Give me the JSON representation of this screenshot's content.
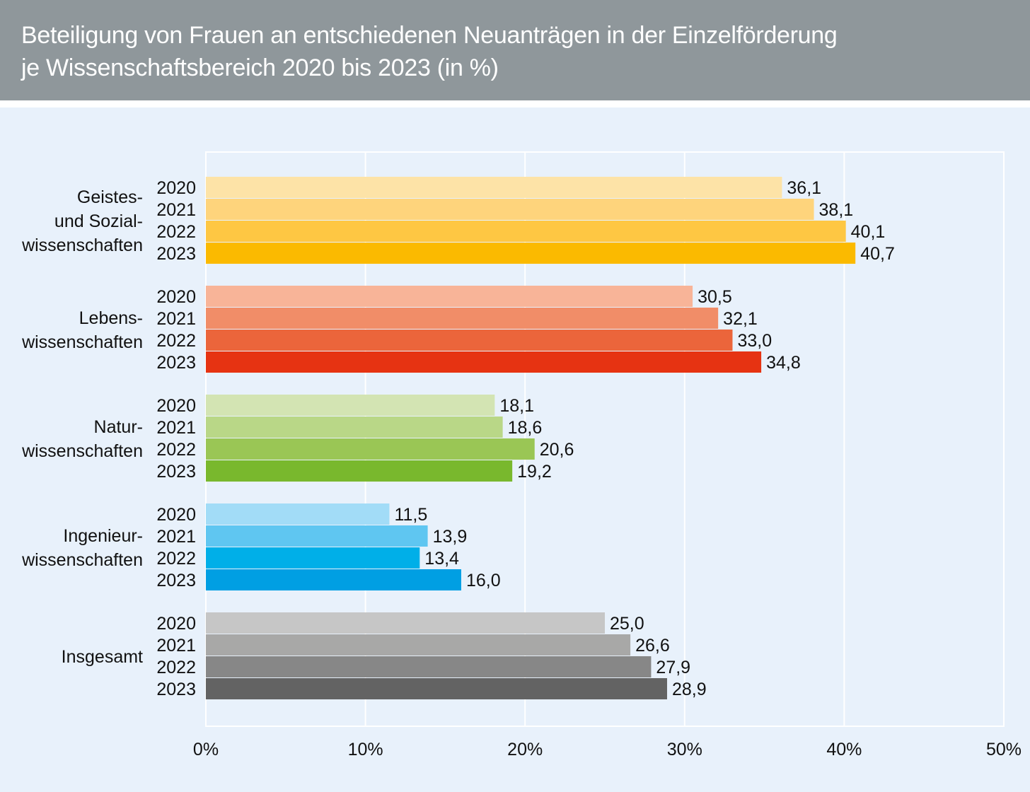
{
  "title": {
    "line1": "Beteiligung von Frauen an entschiedenen Neuanträgen in der Einzelförderung",
    "line2": "je Wissenschaftsbereich 2020 bis 2023 (in %)"
  },
  "chart_data": {
    "type": "bar",
    "orientation": "horizontal",
    "title": "Beteiligung von Frauen an entschiedenen Neuanträgen in der Einzelförderung je Wissenschaftsbereich 2020 bis 2023 (in %)",
    "xlim": [
      0,
      50
    ],
    "x_ticks": [
      "0%",
      "10%",
      "20%",
      "30%",
      "40%",
      "50%"
    ],
    "grid": true,
    "years": [
      "2020",
      "2021",
      "2022",
      "2023"
    ],
    "groups": [
      {
        "label_lines": [
          "Geistes-",
          "und Sozial-",
          "wissenschaften"
        ],
        "values": [
          36.1,
          38.1,
          40.1,
          40.7
        ],
        "value_labels": [
          "36,1",
          "38,1",
          "40,1",
          "40,7"
        ],
        "colors": [
          "#fde3a7",
          "#fed47c",
          "#fec743",
          "#fbba00"
        ]
      },
      {
        "label_lines": [
          "Lebens-",
          "wissenschaften"
        ],
        "values": [
          30.5,
          32.1,
          33.0,
          34.8
        ],
        "value_labels": [
          "30,5",
          "32,1",
          "33,0",
          "34,8"
        ],
        "colors": [
          "#f8b498",
          "#f18d68",
          "#eb653b",
          "#e63312"
        ]
      },
      {
        "label_lines": [
          "Natur-",
          "wissenschaften"
        ],
        "values": [
          18.1,
          18.6,
          20.6,
          19.2
        ],
        "value_labels": [
          "18,1",
          "18,6",
          "20,6",
          "19,2"
        ],
        "colors": [
          "#d3e4b3",
          "#b9d787",
          "#9ac655",
          "#79b82d"
        ]
      },
      {
        "label_lines": [
          "Ingenieur-",
          "wissenschaften"
        ],
        "values": [
          11.5,
          13.9,
          13.4,
          16.0
        ],
        "value_labels": [
          "11,5",
          "13,9",
          "13,4",
          "16,0"
        ],
        "colors": [
          "#a2dcf7",
          "#5fc6f1",
          "#00afe8",
          "#009fe3"
        ]
      },
      {
        "label_lines": [
          "Insgesamt"
        ],
        "values": [
          25.0,
          26.6,
          27.9,
          28.9
        ],
        "value_labels": [
          "25,0",
          "26,6",
          "27,9",
          "28,9"
        ],
        "colors": [
          "#c6c6c6",
          "#a8a8a7",
          "#878787",
          "#636363"
        ]
      }
    ]
  }
}
